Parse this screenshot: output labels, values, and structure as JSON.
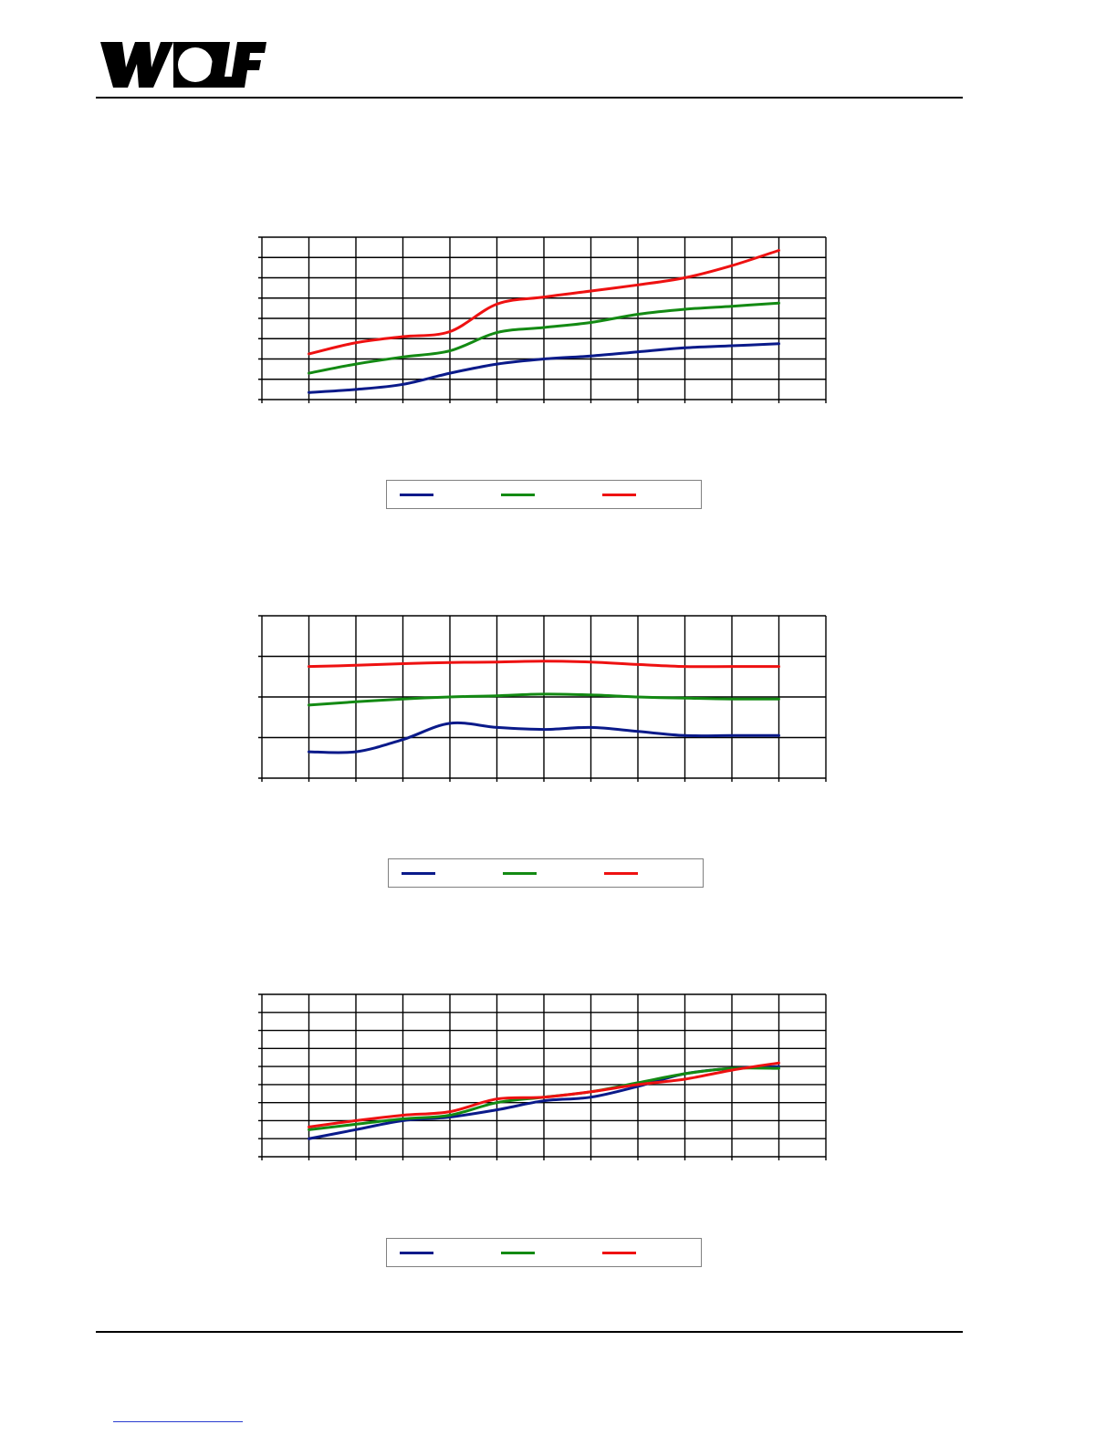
{
  "colors": {
    "series_1": "#0a1a8a",
    "series_2": "#138a13",
    "series_3": "#ee1111"
  },
  "logo": {
    "text": "WOLF"
  },
  "chart_data": [
    {
      "type": "line",
      "x": [
        1,
        2,
        3,
        4,
        5,
        6,
        7,
        8,
        9,
        10,
        11
      ],
      "xlim": [
        0,
        12
      ],
      "ylim": [
        0,
        8
      ],
      "grid": true,
      "legend": "bottom",
      "series": [
        {
          "values": [
            0.35,
            0.5,
            0.75,
            1.3,
            1.75,
            2.0,
            2.15,
            2.35,
            2.55,
            2.65,
            2.75
          ]
        },
        {
          "values": [
            1.3,
            1.75,
            2.1,
            2.4,
            3.3,
            3.55,
            3.8,
            4.2,
            4.45,
            4.6,
            4.75
          ]
        },
        {
          "values": [
            2.25,
            2.8,
            3.1,
            3.35,
            4.7,
            5.05,
            5.35,
            5.65,
            6.0,
            6.6,
            7.35
          ]
        }
      ]
    },
    {
      "type": "line",
      "x": [
        1,
        2,
        3,
        4,
        5,
        6,
        7,
        8,
        9,
        10,
        11
      ],
      "xlim": [
        0,
        12
      ],
      "ylim": [
        0,
        4
      ],
      "grid": true,
      "legend": "bottom",
      "series": [
        {
          "values": [
            0.65,
            0.65,
            0.95,
            1.35,
            1.25,
            1.2,
            1.25,
            1.15,
            1.05,
            1.05,
            1.05
          ]
        },
        {
          "values": [
            1.8,
            1.88,
            1.95,
            2.0,
            2.03,
            2.07,
            2.05,
            2.0,
            1.97,
            1.95,
            1.95
          ]
        },
        {
          "values": [
            2.75,
            2.78,
            2.82,
            2.85,
            2.86,
            2.88,
            2.86,
            2.8,
            2.75,
            2.75,
            2.75
          ]
        }
      ]
    },
    {
      "type": "line",
      "x": [
        1,
        2,
        3,
        4,
        5,
        6,
        7,
        8,
        9,
        10,
        11
      ],
      "xlim": [
        0,
        12
      ],
      "ylim": [
        0,
        9
      ],
      "grid": true,
      "legend": "bottom",
      "series": [
        {
          "values": [
            1.0,
            1.5,
            2.0,
            2.2,
            2.6,
            3.1,
            3.3,
            3.9,
            4.6,
            4.9,
            5.0
          ]
        },
        {
          "values": [
            1.5,
            1.8,
            2.1,
            2.3,
            3.0,
            3.3,
            3.6,
            4.1,
            4.6,
            4.9,
            4.9
          ]
        },
        {
          "values": [
            1.65,
            2.0,
            2.3,
            2.5,
            3.2,
            3.3,
            3.6,
            4.0,
            4.3,
            4.8,
            5.2
          ]
        }
      ]
    }
  ]
}
